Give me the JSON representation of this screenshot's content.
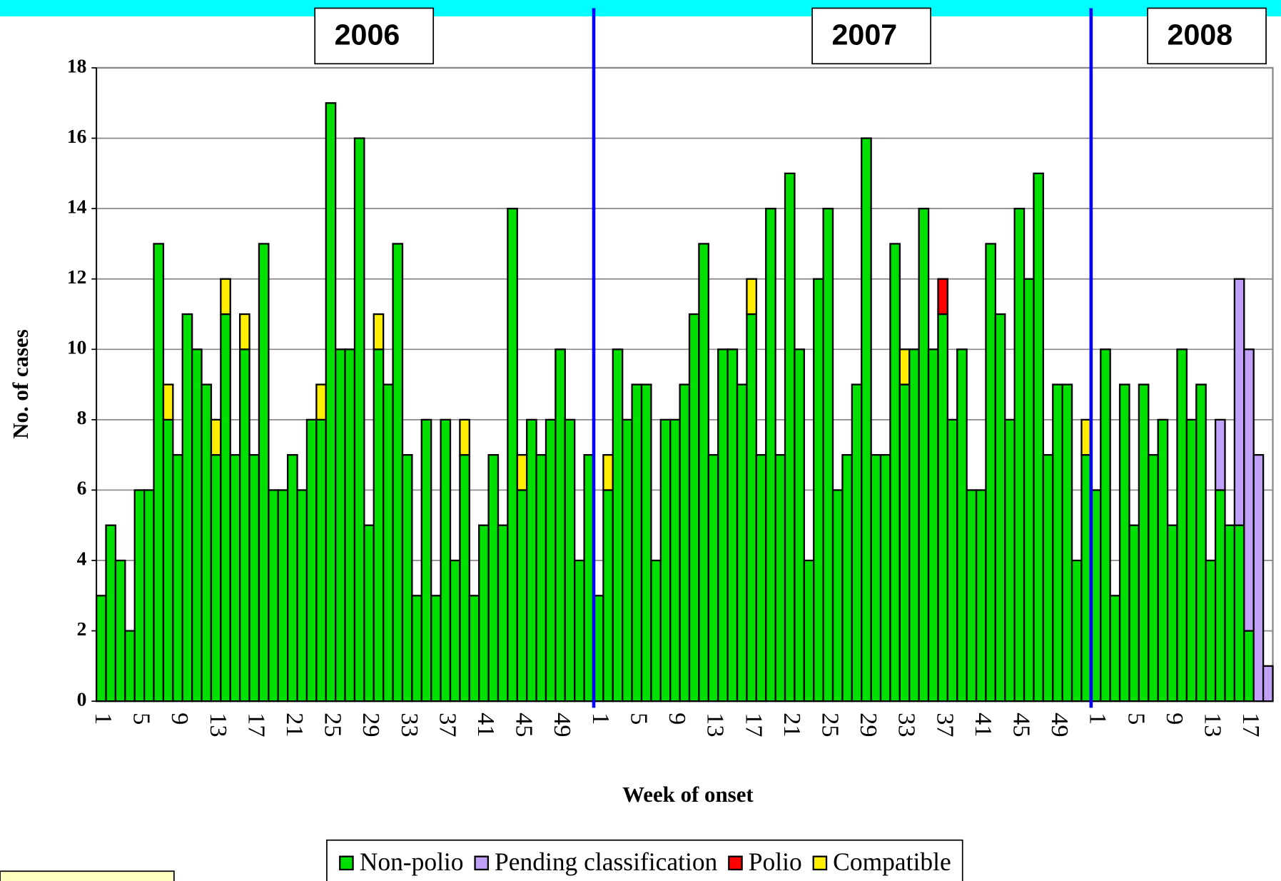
{
  "chart_data": {
    "type": "stacked_bar",
    "groups": [
      {
        "label": "2006",
        "categories": [
          "1",
          null,
          null,
          null,
          "5",
          null,
          null,
          null,
          "9",
          null,
          null,
          null,
          "13",
          null,
          null,
          null,
          "17",
          null,
          null,
          null,
          "21",
          null,
          null,
          null,
          "25",
          null,
          null,
          null,
          "29",
          null,
          null,
          null,
          "33",
          null,
          null,
          null,
          "37",
          null,
          null,
          null,
          "41",
          null,
          null,
          null,
          "45",
          null,
          null,
          null,
          "49",
          null,
          null,
          null
        ]
      },
      {
        "label": "2007",
        "categories": [
          "1",
          null,
          null,
          null,
          "5",
          null,
          null,
          null,
          "9",
          null,
          null,
          null,
          "13",
          null,
          null,
          null,
          "17",
          null,
          null,
          null,
          "21",
          null,
          null,
          null,
          "25",
          null,
          null,
          null,
          "29",
          null,
          null,
          null,
          "33",
          null,
          null,
          null,
          "37",
          null,
          null,
          null,
          "41",
          null,
          null,
          null,
          "45",
          null,
          null,
          null,
          "49",
          null,
          null,
          null
        ]
      },
      {
        "label": "2008",
        "categories": [
          "1",
          null,
          null,
          null,
          "5",
          null,
          null,
          null,
          "9",
          null,
          null,
          null,
          "13",
          null,
          null,
          null,
          "17",
          null,
          null
        ]
      }
    ],
    "x_label": "Week of onset",
    "y_label": "No. of cases",
    "ylim": [
      0,
      18
    ],
    "yticks": [
      0,
      2,
      4,
      6,
      8,
      10,
      12,
      14,
      16,
      18
    ],
    "grid": true,
    "legend": "bottom",
    "series": [
      {
        "name": "Non-polio",
        "color": "#00e000",
        "values": [
          3,
          5,
          4,
          2,
          6,
          6,
          13,
          8,
          7,
          11,
          10,
          9,
          7,
          11,
          7,
          10,
          7,
          13,
          6,
          6,
          7,
          6,
          8,
          8,
          17,
          10,
          10,
          16,
          5,
          10,
          9,
          13,
          7,
          3,
          8,
          3,
          8,
          4,
          7,
          3,
          5,
          7,
          5,
          14,
          6,
          8,
          7,
          8,
          10,
          8,
          4,
          7,
          3,
          6,
          10,
          8,
          9,
          9,
          4,
          8,
          8,
          9,
          11,
          13,
          7,
          10,
          10,
          9,
          11,
          7,
          14,
          7,
          15,
          10,
          4,
          12,
          14,
          6,
          7,
          9,
          16,
          7,
          7,
          13,
          9,
          10,
          14,
          10,
          11,
          8,
          10,
          6,
          6,
          13,
          11,
          8,
          14,
          12,
          15,
          7,
          9,
          9,
          4,
          7,
          6,
          10,
          3,
          9,
          5,
          9,
          7,
          8,
          5,
          10,
          8,
          9,
          4,
          6,
          5,
          5,
          2,
          0,
          0
        ]
      },
      {
        "name": "Pending classification",
        "color": "#c0a0f8",
        "values": [
          0,
          0,
          0,
          0,
          0,
          0,
          0,
          0,
          0,
          0,
          0,
          0,
          0,
          0,
          0,
          0,
          0,
          0,
          0,
          0,
          0,
          0,
          0,
          0,
          0,
          0,
          0,
          0,
          0,
          0,
          0,
          0,
          0,
          0,
          0,
          0,
          0,
          0,
          0,
          0,
          0,
          0,
          0,
          0,
          0,
          0,
          0,
          0,
          0,
          0,
          0,
          0,
          0,
          0,
          0,
          0,
          0,
          0,
          0,
          0,
          0,
          0,
          0,
          0,
          0,
          0,
          0,
          0,
          0,
          0,
          0,
          0,
          0,
          0,
          0,
          0,
          0,
          0,
          0,
          0,
          0,
          0,
          0,
          0,
          0,
          0,
          0,
          0,
          0,
          0,
          0,
          0,
          0,
          0,
          0,
          0,
          0,
          0,
          0,
          0,
          0,
          0,
          0,
          0,
          0,
          0,
          0,
          0,
          0,
          0,
          0,
          0,
          0,
          0,
          0,
          0,
          0,
          2,
          0,
          7,
          8,
          7,
          1
        ]
      },
      {
        "name": "Polio",
        "color": "#ff0000",
        "values": [
          0,
          0,
          0,
          0,
          0,
          0,
          0,
          0,
          0,
          0,
          0,
          0,
          0,
          0,
          0,
          0,
          0,
          0,
          0,
          0,
          0,
          0,
          0,
          0,
          0,
          0,
          0,
          0,
          0,
          0,
          0,
          0,
          0,
          0,
          0,
          0,
          0,
          0,
          0,
          0,
          0,
          0,
          0,
          0,
          0,
          0,
          0,
          0,
          0,
          0,
          0,
          0,
          0,
          0,
          0,
          0,
          0,
          0,
          0,
          0,
          0,
          0,
          0,
          0,
          0,
          0,
          0,
          0,
          0,
          0,
          0,
          0,
          0,
          0,
          0,
          0,
          0,
          0,
          0,
          0,
          0,
          0,
          0,
          0,
          0,
          0,
          0,
          0,
          1,
          0,
          0,
          0,
          0,
          0,
          0,
          0,
          0,
          0,
          0,
          0,
          0,
          0,
          0,
          0,
          0,
          0,
          0,
          0,
          0,
          0,
          0,
          0,
          0,
          0,
          0,
          0,
          0,
          0,
          0,
          0,
          0,
          0,
          0
        ]
      },
      {
        "name": "Compatible",
        "color": "#ffee00",
        "values": [
          0,
          0,
          0,
          0,
          0,
          0,
          0,
          1,
          0,
          0,
          0,
          0,
          1,
          1,
          0,
          1,
          0,
          0,
          0,
          0,
          0,
          0,
          0,
          1,
          0,
          0,
          0,
          0,
          0,
          1,
          0,
          0,
          0,
          0,
          0,
          0,
          0,
          0,
          1,
          0,
          0,
          0,
          0,
          0,
          1,
          0,
          0,
          0,
          0,
          0,
          0,
          0,
          0,
          1,
          0,
          0,
          0,
          0,
          0,
          0,
          0,
          0,
          0,
          0,
          0,
          0,
          0,
          0,
          1,
          0,
          0,
          0,
          0,
          0,
          0,
          0,
          0,
          0,
          0,
          0,
          0,
          0,
          0,
          0,
          1,
          0,
          0,
          0,
          0,
          0,
          0,
          0,
          0,
          0,
          0,
          0,
          0,
          0,
          0,
          0,
          0,
          0,
          0,
          1,
          0,
          0,
          0,
          0,
          0,
          0,
          0,
          0,
          0,
          0,
          0,
          0,
          0,
          0,
          0,
          0,
          0,
          0,
          0
        ]
      }
    ]
  }
}
